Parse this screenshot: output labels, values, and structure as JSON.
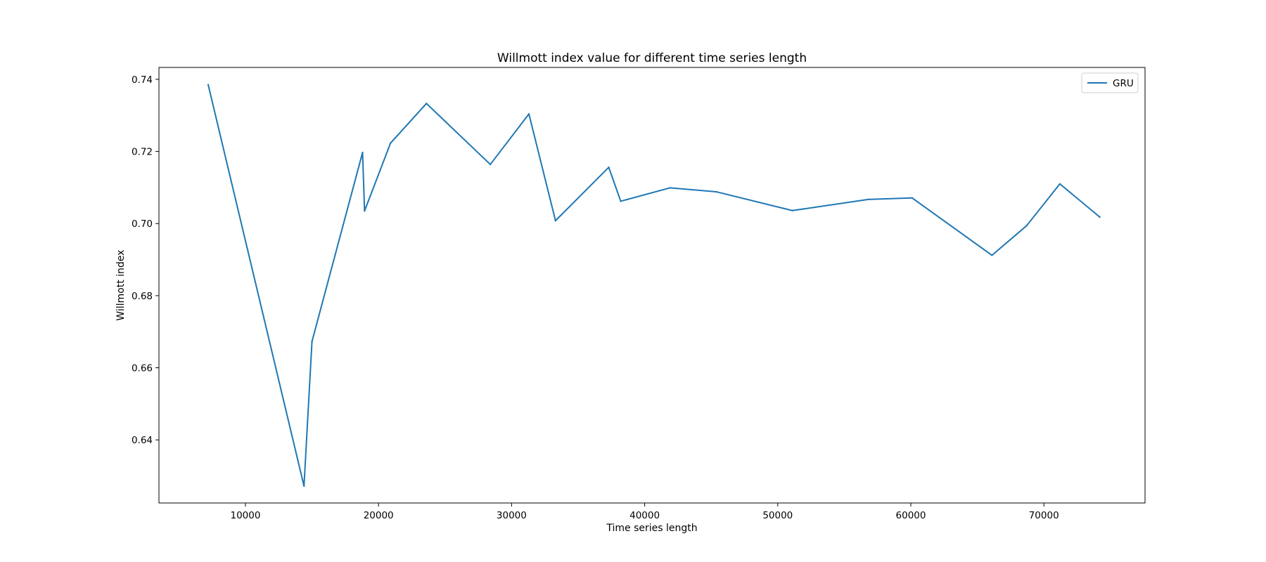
{
  "chart_data": {
    "type": "line",
    "title": "Willmott index value for different time series length",
    "xlabel": "Time series length",
    "ylabel": "Willmott index",
    "xlim": [
      3500,
      77600
    ],
    "ylim": [
      0.6225,
      0.7433
    ],
    "xticks": [
      10000,
      20000,
      30000,
      40000,
      50000,
      60000,
      70000
    ],
    "xtick_labels": [
      "10000",
      "20000",
      "30000",
      "40000",
      "50000",
      "60000",
      "70000"
    ],
    "yticks": [
      0.64,
      0.66,
      0.68,
      0.7,
      0.72,
      0.74
    ],
    "ytick_labels": [
      "0.64",
      "0.66",
      "0.68",
      "0.70",
      "0.72",
      "0.74"
    ],
    "grid": false,
    "legend": {
      "position": "top-right",
      "entries": [
        "GRU"
      ]
    },
    "series": [
      {
        "name": "GRU",
        "color": "#1f77b4",
        "x": [
          7200,
          14400,
          15000,
          18800,
          18950,
          20900,
          23600,
          28400,
          31300,
          33300,
          37300,
          38200,
          41900,
          45400,
          51100,
          56800,
          60100,
          66100,
          68700,
          71200,
          74200
        ],
        "y": [
          0.7385,
          0.6272,
          0.6673,
          0.7197,
          0.7035,
          0.7223,
          0.7333,
          0.7164,
          0.7304,
          0.7008,
          0.7156,
          0.7062,
          0.7099,
          0.7088,
          0.7036,
          0.7067,
          0.7071,
          0.6912,
          0.6994,
          0.711,
          0.7018
        ]
      }
    ]
  }
}
